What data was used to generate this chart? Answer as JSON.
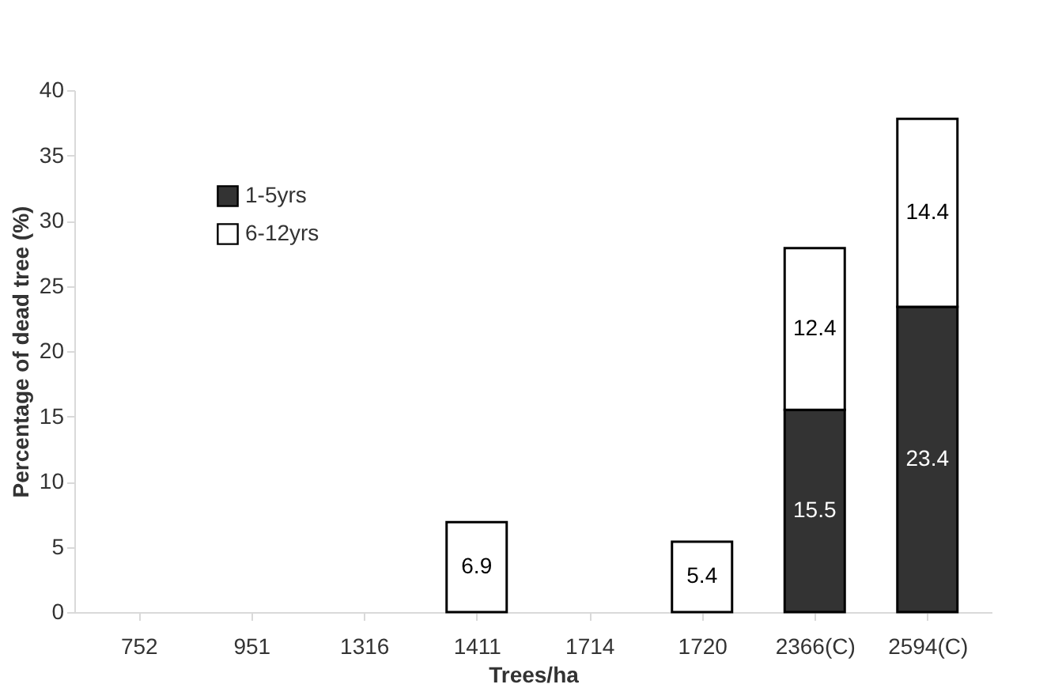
{
  "chart_data": {
    "type": "bar",
    "stacked": true,
    "xlabel": "Trees/ha",
    "ylabel": "Percentage of dead tree (%)",
    "categories": [
      "752",
      "951",
      "1316",
      "1411",
      "1714",
      "1720",
      "2366(C)",
      "2594(C)"
    ],
    "series": [
      {
        "name": "1-5yrs",
        "color": "#333333",
        "values": [
          null,
          null,
          null,
          null,
          null,
          null,
          15.5,
          23.4
        ]
      },
      {
        "name": "6-12yrs",
        "color": "#ffffff",
        "values": [
          null,
          null,
          null,
          6.9,
          null,
          5.4,
          12.4,
          14.4
        ]
      }
    ],
    "ylim": [
      0,
      40
    ],
    "yticks": [
      0,
      5,
      10,
      15,
      20,
      25,
      30,
      35,
      40
    ],
    "grid": false,
    "legend": "top left",
    "data_labels": true
  }
}
